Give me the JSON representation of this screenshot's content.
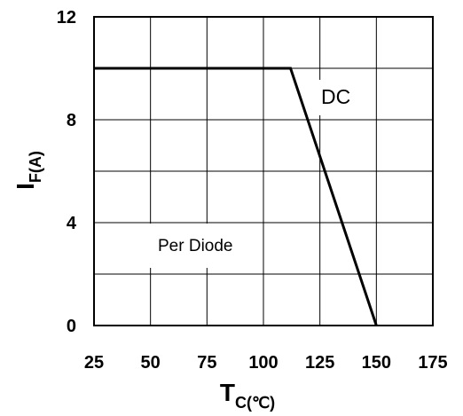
{
  "chart_data": {
    "type": "line",
    "x_ticks": [
      "25",
      "50",
      "75",
      "100",
      "125",
      "150",
      "175"
    ],
    "y_ticks": [
      "0",
      "4",
      "8",
      "12"
    ],
    "xlim": [
      25,
      175
    ],
    "ylim": [
      0,
      12
    ],
    "grid": true,
    "xlabel": {
      "main": "T",
      "sub": "C(℃)"
    },
    "ylabel": {
      "main": "I",
      "sub": "F(A)"
    },
    "annotations": {
      "dc": "DC",
      "per_diode": "Per Diode"
    },
    "series": [
      {
        "x": [
          25,
          112,
          150
        ],
        "y": [
          10,
          10,
          0
        ],
        "color": "#000000"
      }
    ]
  }
}
